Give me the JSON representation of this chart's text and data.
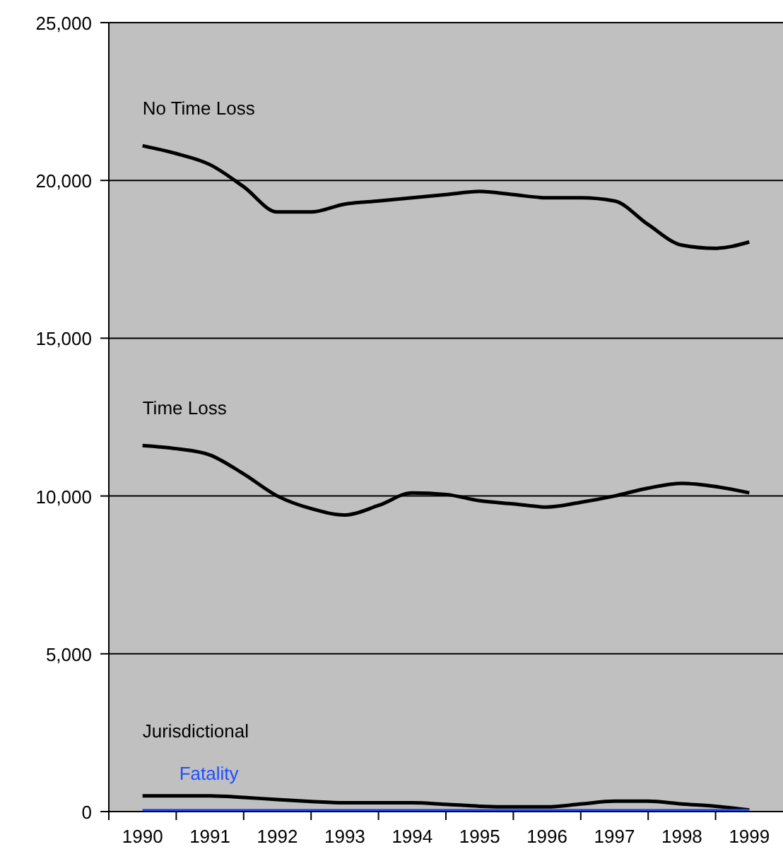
{
  "chart_data": {
    "type": "line",
    "x": [
      1990,
      1990.5,
      1991,
      1991.5,
      1992,
      1992.5,
      1993,
      1993.5,
      1994,
      1994.5,
      1995,
      1995.5,
      1996,
      1996.5,
      1997,
      1997.5,
      1998,
      1998.5,
      1999
    ],
    "series": [
      {
        "name": "No Time Loss",
        "color": "#000000",
        "values": [
          21100,
          20850,
          20500,
          19800,
          19000,
          19000,
          19250,
          19350,
          19450,
          19550,
          19650,
          19550,
          19450,
          19450,
          19350,
          18600,
          17950,
          17850,
          18050
        ]
      },
      {
        "name": "Time Loss",
        "color": "#000000",
        "values": [
          11600,
          11500,
          11300,
          10700,
          10000,
          9600,
          9400,
          9700,
          10100,
          10050,
          9850,
          9750,
          9650,
          9800,
          10000,
          10250,
          10400,
          10300,
          10100
        ]
      },
      {
        "name": "Jurisdictional",
        "color": "#000000",
        "values": [
          500,
          500,
          500,
          450,
          380,
          320,
          280,
          280,
          280,
          230,
          170,
          150,
          150,
          240,
          330,
          330,
          240,
          170,
          50
        ]
      },
      {
        "name": "Fatality",
        "color": "#1f4fff",
        "values": [
          30,
          30,
          30,
          30,
          30,
          30,
          30,
          30,
          30,
          30,
          30,
          30,
          30,
          30,
          30,
          30,
          30,
          30,
          30
        ]
      }
    ],
    "xlim": [
      1989.5,
      1999.5
    ],
    "xticks": [
      {
        "value": 1989.5,
        "label": null
      },
      {
        "value": 1990,
        "label": "1990"
      },
      {
        "value": 1990.5,
        "label": null
      },
      {
        "value": 1991,
        "label": "1991"
      },
      {
        "value": 1991.5,
        "label": null
      },
      {
        "value": 1992,
        "label": "1992"
      },
      {
        "value": 1992.5,
        "label": null
      },
      {
        "value": 1993,
        "label": "1993"
      },
      {
        "value": 1993.5,
        "label": null
      },
      {
        "value": 1994,
        "label": "1994"
      },
      {
        "value": 1994.5,
        "label": null
      },
      {
        "value": 1995,
        "label": "1995"
      },
      {
        "value": 1995.5,
        "label": null
      },
      {
        "value": 1996,
        "label": "1996"
      },
      {
        "value": 1996.5,
        "label": null
      },
      {
        "value": 1997,
        "label": "1997"
      },
      {
        "value": 1997.5,
        "label": null
      },
      {
        "value": 1998,
        "label": "1998"
      },
      {
        "value": 1998.5,
        "label": null
      },
      {
        "value": 1999,
        "label": "1999"
      }
    ],
    "ylim": [
      0,
      25000
    ],
    "yticks": [
      0,
      {
        "value": 5000,
        "label": "5,000"
      },
      {
        "value": 10000,
        "label": "10,000"
      },
      {
        "value": 15000,
        "label": "15,000"
      },
      {
        "value": 20000,
        "label": "20,000"
      },
      {
        "value": 25000,
        "label": "25,000"
      }
    ],
    "grid": "y",
    "legend": false,
    "marker": "none",
    "line_style": "solid"
  }
}
